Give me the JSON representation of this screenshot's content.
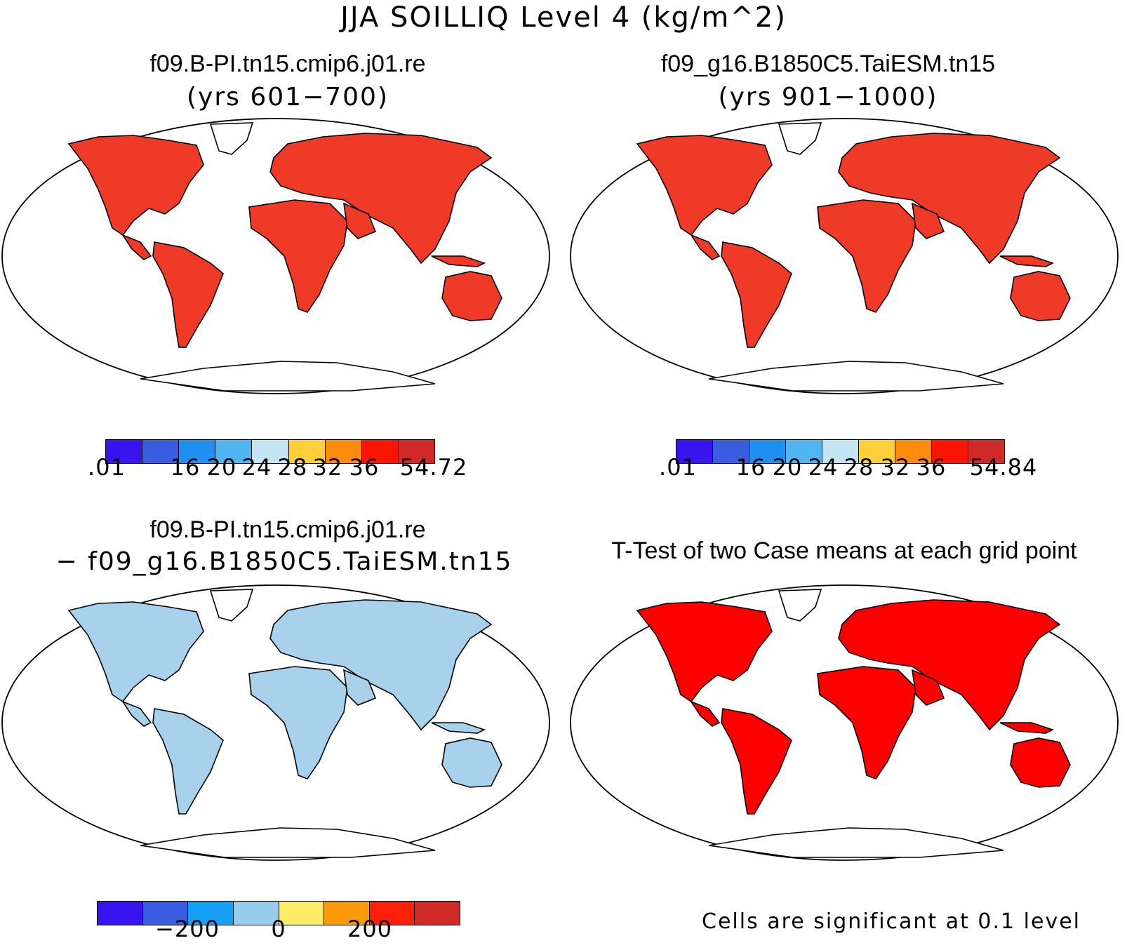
{
  "title": "JJA SOILLIQ Level 4 (kg/m^2)",
  "panels": [
    {
      "case": "f09.B-PI.tn15.cmip6.j01.re",
      "years": "(yrs 601−700)"
    },
    {
      "case": "f09_g16.B1850C5.TaiESM.tn15",
      "years": "(yrs 901−1000)"
    },
    {
      "case": "f09.B-PI.tn15.cmip6.j01.re",
      "minus_case": "− f09_g16.B1850C5.TaiESM.tn15"
    },
    {
      "title": "T-Test of two Case means at each grid point",
      "note": "Cells are significant at 0.1 level"
    }
  ],
  "colorbars": {
    "abs1": {
      "colors": [
        "#3a14f0",
        "#3a5ce0",
        "#1f8ff2",
        "#4fb6f2",
        "#c4e4f4",
        "#fcd036",
        "#fc8c0c",
        "#fc1404",
        "#d02a28"
      ],
      "labels": [
        ".01",
        "16",
        "20",
        "24",
        "28",
        "32",
        "36",
        "54.72"
      ]
    },
    "abs2": {
      "colors": [
        "#3a14f0",
        "#3a5ce0",
        "#1f8ff2",
        "#4fb6f2",
        "#c4e4f4",
        "#fcd036",
        "#fc8c0c",
        "#fc1404",
        "#d02a28"
      ],
      "labels": [
        ".01",
        "16",
        "20",
        "24",
        "28",
        "32",
        "36",
        "54.84"
      ]
    },
    "diff": {
      "colors": [
        "#3a14f0",
        "#3a5ce0",
        "#14a0f4",
        "#96cdea",
        "#fceb64",
        "#fc9a0a",
        "#fc2008",
        "#d02a28"
      ],
      "labels": [
        "−200",
        "0",
        "200"
      ]
    }
  },
  "map_fills": {
    "mean": "#f03a28",
    "diff": "#a8d2ec",
    "ttest": "#ff0000"
  }
}
